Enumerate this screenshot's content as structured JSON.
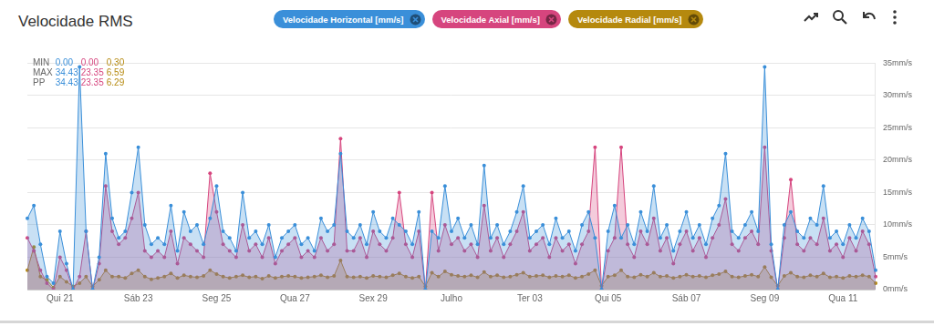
{
  "chart_data": {
    "type": "area",
    "title": "Velocidade RMS",
    "legend": "top",
    "grid": true,
    "marker": "circle",
    "categories": [
      null,
      null,
      null,
      null,
      null,
      "Qui 21",
      null,
      null,
      null,
      null,
      null,
      null,
      null,
      null,
      null,
      null,
      null,
      "Sáb 23",
      null,
      null,
      null,
      null,
      null,
      null,
      null,
      null,
      null,
      null,
      null,
      "Seg 25",
      null,
      null,
      null,
      null,
      null,
      null,
      null,
      null,
      null,
      null,
      null,
      "Qua 27",
      null,
      null,
      null,
      null,
      null,
      null,
      null,
      null,
      null,
      null,
      null,
      "Sex 29",
      null,
      null,
      null,
      null,
      null,
      null,
      null,
      null,
      null,
      null,
      null,
      "Julho",
      null,
      null,
      null,
      null,
      null,
      null,
      null,
      null,
      null,
      null,
      null,
      "Ter 03",
      null,
      null,
      null,
      null,
      null,
      null,
      null,
      null,
      null,
      null,
      null,
      "Qui 05",
      null,
      null,
      null,
      null,
      null,
      null,
      null,
      null,
      null,
      null,
      null,
      "Sáb 07",
      null,
      null,
      null,
      null,
      null,
      null,
      null,
      null,
      null,
      null,
      null,
      "Seg 09",
      null,
      null,
      null,
      null,
      null,
      null,
      null,
      null,
      null,
      null,
      null,
      "Qua 11",
      null,
      null,
      null,
      null,
      null
    ],
    "series": [
      {
        "name": "Velocidade Horizontal [mm/s]",
        "color": "#3a8fd9",
        "values": [
          11,
          13,
          7,
          2,
          1,
          9,
          4,
          0,
          34.43,
          9,
          0,
          5,
          21,
          11,
          8,
          9,
          15,
          22,
          10,
          7,
          8,
          7,
          13,
          6,
          12,
          9,
          10,
          7,
          11,
          16,
          9,
          8,
          6,
          15,
          8,
          9,
          7,
          10,
          5,
          8,
          9,
          10,
          7,
          8,
          6,
          11,
          9,
          10,
          21,
          9,
          8,
          10,
          7,
          12,
          9,
          8,
          11,
          10,
          9,
          7,
          12,
          0,
          9,
          8,
          16,
          9,
          11,
          8,
          10,
          7,
          19.2,
          8,
          10,
          7,
          9,
          12,
          16,
          8,
          9,
          10,
          7,
          11,
          8,
          9,
          6,
          10,
          12,
          8,
          0,
          9,
          13,
          8,
          10,
          7,
          12,
          9,
          16,
          8,
          10,
          6,
          9,
          12,
          8,
          10,
          7,
          11,
          13,
          21,
          9,
          8,
          10,
          12,
          9,
          34.41,
          7,
          0,
          10,
          12,
          9,
          8,
          11,
          10,
          16,
          8,
          9,
          7,
          10,
          8,
          11,
          9,
          3
        ]
      },
      {
        "name": "Velocidade Axial [mm/s]",
        "color": "#d6457e",
        "values": [
          8,
          6,
          3,
          1,
          0,
          5,
          3,
          0,
          2,
          9,
          0,
          4,
          16,
          9,
          7,
          8,
          11,
          15,
          6,
          5,
          6,
          5,
          9,
          4,
          8,
          7,
          6,
          5,
          18,
          12,
          7,
          6,
          5,
          10,
          6,
          7,
          5,
          8,
          4,
          6,
          7,
          8,
          5,
          6,
          5,
          8,
          6,
          7,
          23.35,
          6,
          6,
          8,
          5,
          9,
          7,
          6,
          8,
          15,
          7,
          5,
          9,
          0,
          15,
          6,
          10,
          7,
          8,
          6,
          7,
          5,
          13,
          6,
          8,
          5,
          7,
          9,
          12,
          6,
          7,
          8,
          5,
          8,
          6,
          7,
          4,
          7,
          9,
          22,
          0,
          6,
          8,
          22,
          7,
          5,
          9,
          7,
          11,
          6,
          8,
          4,
          7,
          9,
          6,
          8,
          5,
          8,
          10,
          14,
          7,
          6,
          8,
          9,
          7,
          22,
          6,
          0,
          8,
          17,
          7,
          6,
          8,
          7,
          11,
          6,
          7,
          5,
          8,
          6,
          9,
          7,
          2
        ]
      },
      {
        "name": "Velocidade Radial [mm/s]",
        "color": "#b5890e",
        "values": [
          3,
          6.59,
          2,
          1.5,
          0.3,
          2,
          1.2,
          0.5,
          1,
          2,
          0.5,
          1.5,
          3,
          2,
          2,
          1.8,
          2.5,
          3,
          2,
          1.6,
          1.8,
          2,
          2.5,
          1.8,
          2.2,
          2,
          1.9,
          2.1,
          3,
          2.4,
          2,
          1.8,
          2,
          2.2,
          1.9,
          2,
          1.7,
          2.1,
          1.8,
          2,
          2.1,
          2,
          1.8,
          1.9,
          2,
          2.2,
          1.9,
          2.1,
          4.5,
          2,
          1.9,
          2,
          1.8,
          2.1,
          2,
          1.9,
          2.2,
          2.5,
          2,
          1.8,
          2,
          0.5,
          2.6,
          2,
          2.8,
          2.3,
          2.1,
          2,
          2.2,
          1.9,
          2.7,
          2,
          2.2,
          1.9,
          2,
          2.3,
          2.6,
          2,
          2.1,
          2.2,
          1.9,
          2.1,
          2,
          2.2,
          1.8,
          2,
          2.4,
          3,
          0.6,
          2,
          2.2,
          3,
          2,
          1.9,
          2.3,
          2,
          2.6,
          2,
          2.1,
          1.8,
          2,
          2.3,
          2,
          2.1,
          1.9,
          2.2,
          2.4,
          2.8,
          2,
          1.9,
          2.1,
          2.3,
          2,
          3.5,
          1.9,
          0.6,
          2.1,
          2.6,
          2,
          1.9,
          2.2,
          2,
          2.5,
          1.9,
          2,
          1.8,
          2.1,
          2,
          2.2,
          2,
          1
        ]
      }
    ],
    "ylim": [
      0,
      35
    ],
    "yticks": [
      {
        "value": 0,
        "label": "0mm/s"
      },
      {
        "value": 5,
        "label": "5mm/s"
      },
      {
        "value": 10,
        "label": "10mm/s"
      },
      {
        "value": 15,
        "label": "15mm/s"
      },
      {
        "value": 20,
        "label": "20mm/s"
      },
      {
        "value": 25,
        "label": "25mm/s"
      },
      {
        "value": 30,
        "label": "30mm/s"
      },
      {
        "value": 35,
        "label": "35mm/s"
      }
    ],
    "stats": [
      {
        "label": "MIN",
        "values": [
          "0.00",
          "0.00",
          "0.30"
        ]
      },
      {
        "label": "MAX",
        "values": [
          "34.43",
          "23.35",
          "6.59"
        ]
      },
      {
        "label": "PP",
        "values": [
          "34.43",
          "23.35",
          "6.29"
        ]
      }
    ]
  }
}
